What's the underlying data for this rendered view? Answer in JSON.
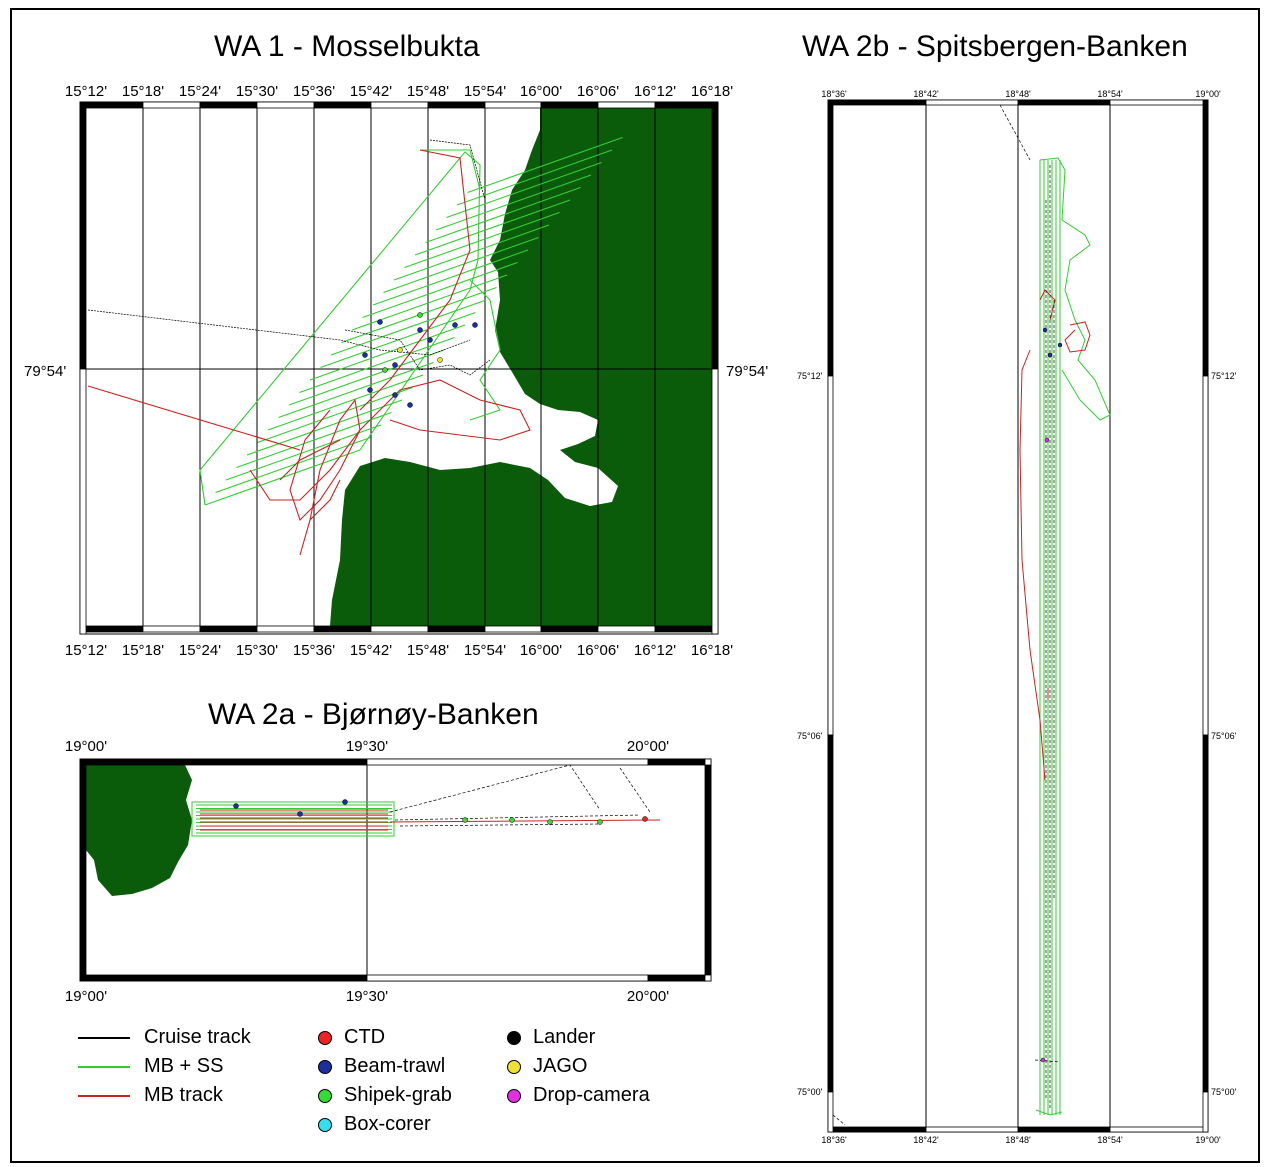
{
  "panels": {
    "wa1": {
      "title": "WA 1 - Mosselbukta",
      "lon_ticks": [
        "15°12'",
        "15°18'",
        "15°24'",
        "15°30'",
        "15°36'",
        "15°42'",
        "15°48'",
        "15°54'",
        "16°00'",
        "16°06'",
        "16°12'",
        "16°18'"
      ],
      "lat_label": "79°54'"
    },
    "wa2a": {
      "title": "WA 2a - Bjørnøy-Banken",
      "lon_ticks": [
        "19°00'",
        "19°30'",
        "20°00'"
      ]
    },
    "wa2b": {
      "title": "WA 2b - Spitsbergen-Banken",
      "lon_ticks": [
        "18°36'",
        "18°42'",
        "18°48'",
        "18°54'",
        "19°00'"
      ],
      "lat_ticks": [
        "75°12'",
        "75°06'",
        "75°00'"
      ]
    }
  },
  "legend": {
    "lines": [
      {
        "label": "Cruise track",
        "color": "#000000"
      },
      {
        "label": "MB + SS",
        "color": "#33cc33"
      },
      {
        "label": "MB track",
        "color": "#cc2222"
      }
    ],
    "markers": [
      {
        "label": "CTD",
        "color": "#ee2222"
      },
      {
        "label": "Beam-trawl",
        "color": "#1a2fa0"
      },
      {
        "label": "Shipek-grab",
        "color": "#33dd33"
      },
      {
        "label": "Box-corer",
        "color": "#33e0f0"
      },
      {
        "label": "Lander",
        "color": "#000000"
      },
      {
        "label": "JAGO",
        "color": "#f0e030"
      },
      {
        "label": "Drop-camera",
        "color": "#e030e0"
      }
    ]
  },
  "colors": {
    "land": "#0a5c0a",
    "mbss": "#33cc33",
    "mbtrack": "#cc2222",
    "cruise": "#000000"
  }
}
